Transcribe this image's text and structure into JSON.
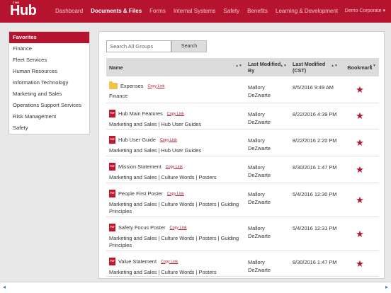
{
  "header": {
    "logo_small": "THE",
    "logo": "Hub",
    "nav": [
      "Dashboard",
      "Documents & Files",
      "Forms",
      "Internal Systems",
      "Safety",
      "Benefits",
      "Learning & Development"
    ],
    "active_nav": "Documents & Files",
    "user": "Demo Corporate ▾"
  },
  "sidebar": {
    "items": [
      "Favorites",
      "Finance",
      "Fleet Services",
      "Human Resources",
      "Information Technology",
      "Marketing and Sales",
      "Operations Support Services",
      "Risk Management",
      "Safety"
    ],
    "active": "Favorites"
  },
  "search": {
    "placeholder": "Search All Groups",
    "button": "Search"
  },
  "table": {
    "columns": [
      "Name",
      "Last Modified By",
      "Last Modified (CST)",
      "Bookmark"
    ],
    "copy_link_label": "Copy Link",
    "rows": [
      {
        "icon": "folder-icon",
        "name": "Expenses",
        "path": "Finance",
        "modified_by": "Mallory DeZwarte",
        "modified": "8/5/2016 9:49 AM",
        "bookmarked": true
      },
      {
        "icon": "pdf-icon",
        "name": "Hub Main Features",
        "path": "Marketing and Sales | Hub User Guides",
        "modified_by": "Mallory DeZwarte",
        "modified": "8/22/2016 4:39 PM",
        "bookmarked": true
      },
      {
        "icon": "pdf-icon",
        "name": "Hub User Guide",
        "path": "Marketing and Sales | Hub User Guides",
        "modified_by": "Mallory DeZwarte",
        "modified": "8/22/2016 2:20 PM",
        "bookmarked": true
      },
      {
        "icon": "pdf-icon",
        "name": "Mission Statement",
        "path": "Marketing and Sales | Culture Words | Posters",
        "modified_by": "Mallory DeZwarte",
        "modified": "8/30/2016 1:47 PM",
        "bookmarked": true
      },
      {
        "icon": "pdf-icon",
        "name": "People First Poster",
        "path": "Marketing and Sales | Culture Words | Posters | Guiding Principles",
        "modified_by": "Mallory DeZwarte",
        "modified": "5/4/2016 12:30 PM",
        "bookmarked": true
      },
      {
        "icon": "pdf-icon",
        "name": "Safety Focus Poster",
        "path": "Marketing and Sales | Culture Words | Posters | Guiding Principles",
        "modified_by": "Mallory DeZwarte",
        "modified": "5/4/2016 12:31 PM",
        "bookmarked": true
      },
      {
        "icon": "pdf-icon",
        "name": "Value Statement",
        "path": "Marketing and Sales | Culture Words | Posters",
        "modified_by": "Mallory DeZwarte",
        "modified": "8/30/2016 1:47 PM",
        "bookmarked": true
      }
    ]
  },
  "colors": {
    "brand": "#b5132e",
    "folder": "#f0c24a"
  },
  "icons": {
    "pdf_label": "PDF",
    "star": "★",
    "sort": "▲▼",
    "left_arrow": "◂",
    "right_arrow": "▸"
  }
}
